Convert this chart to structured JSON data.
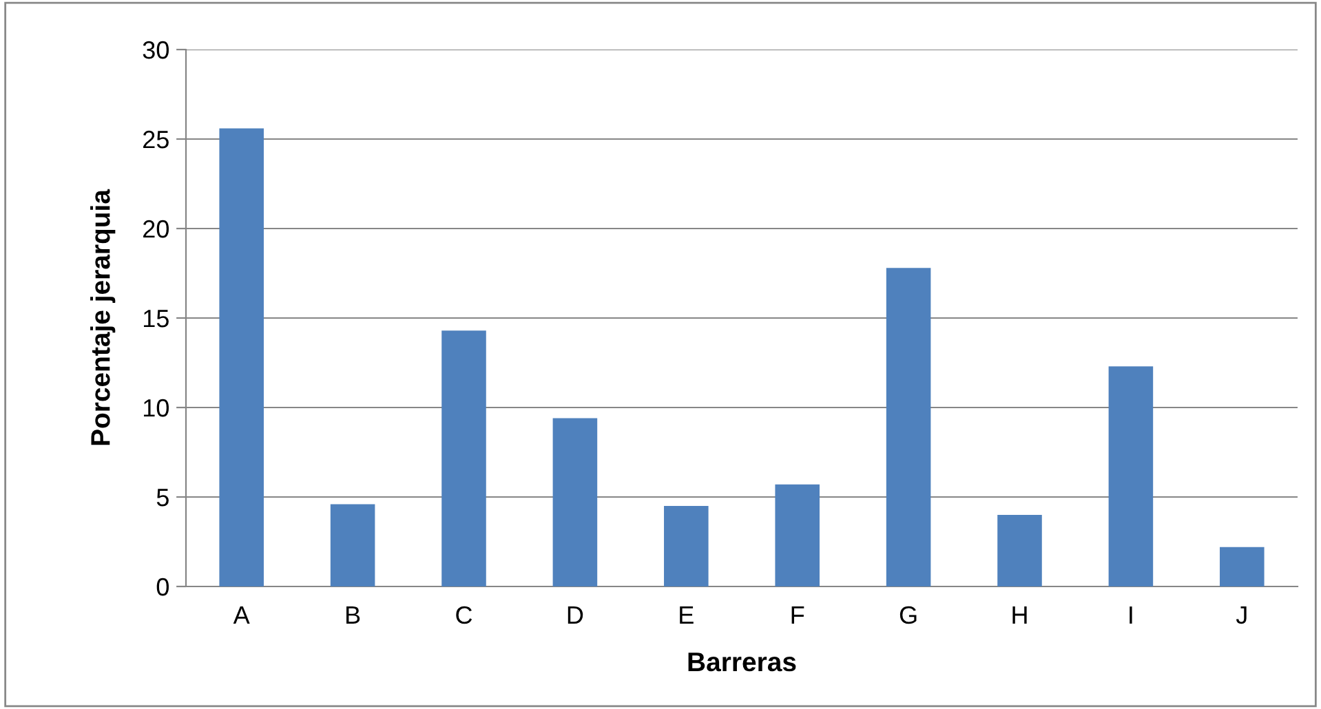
{
  "chart_data": {
    "type": "bar",
    "xlabel": "Barreras",
    "ylabel": "Porcentaje jerarquia",
    "categories": [
      "A",
      "B",
      "C",
      "D",
      "E",
      "F",
      "G",
      "H",
      "I",
      "J"
    ],
    "values": [
      25.6,
      4.6,
      14.3,
      9.4,
      4.5,
      5.7,
      17.8,
      4.0,
      12.3,
      2.2
    ],
    "color": "#4f81bd",
    "ylim": [
      0,
      30
    ],
    "yticks": [
      0,
      5,
      10,
      15,
      20,
      25,
      30
    ],
    "grid": "y"
  }
}
